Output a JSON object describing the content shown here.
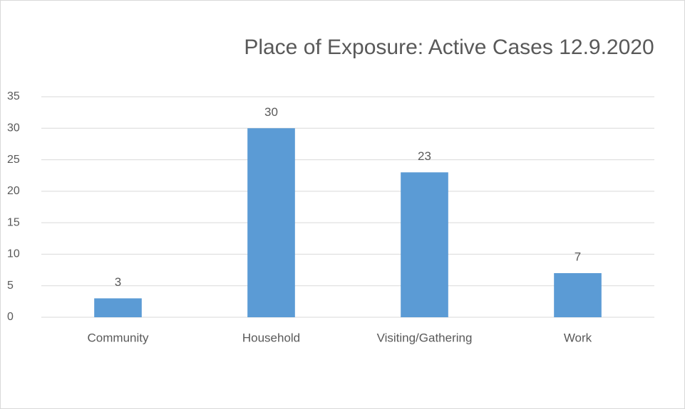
{
  "chart_data": {
    "type": "bar",
    "title": "Place of Exposure: Active Cases 12.9.2020",
    "categories": [
      "Community",
      "Household",
      "Visiting/Gathering",
      "Work"
    ],
    "values": [
      3,
      30,
      23,
      7
    ],
    "color": "#5b9bd5",
    "ylim": [
      0,
      35
    ],
    "yticks": [
      0,
      5,
      10,
      15,
      20,
      25,
      30,
      35
    ],
    "grid": true
  }
}
